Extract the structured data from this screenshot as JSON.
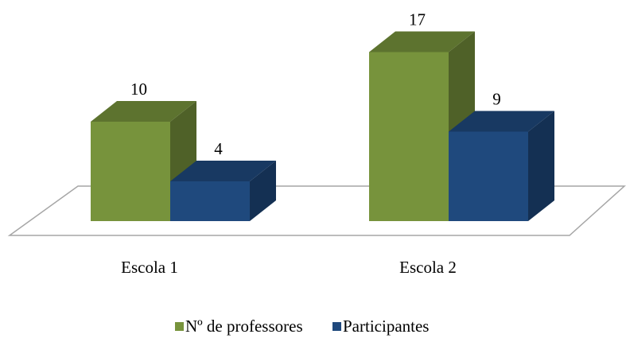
{
  "chart_data": {
    "type": "bar3d",
    "categories": [
      "Escola 1",
      "Escola 2"
    ],
    "series": [
      {
        "name": "Nº de professores",
        "color": "#77933c",
        "values": [
          10,
          17
        ]
      },
      {
        "name": "Participantes",
        "color": "#1f497d",
        "values": [
          4,
          9
        ]
      }
    ],
    "legend": "bottom"
  }
}
